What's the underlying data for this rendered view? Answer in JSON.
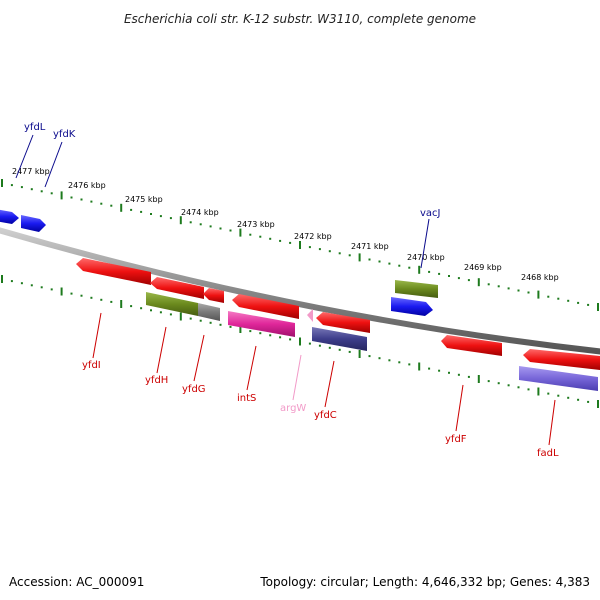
{
  "title": "Escherichia coli str. K-12 substr. W3110, complete genome",
  "footer": {
    "accession": "Accession: AC_000091",
    "summary": "Topology: circular; Length: 4,646,332 bp; Genes: 4,383"
  },
  "ticks": [
    "2477 kbp",
    "2476 kbp",
    "2475 kbp",
    "2474 kbp",
    "2473 kbp",
    "2472 kbp",
    "2471 kbp",
    "2470 kbp",
    "2469 kbp",
    "2468 kbp"
  ],
  "genes": [
    {
      "name": "yfdL",
      "color": "#0a0a8c",
      "strand": "forward"
    },
    {
      "name": "yfdK",
      "color": "#0a0a8c",
      "strand": "forward"
    },
    {
      "name": "vacJ",
      "color": "#0a0a8c",
      "strand": "forward"
    },
    {
      "name": "yfdI",
      "color": "#cc0000",
      "strand": "reverse"
    },
    {
      "name": "yfdH",
      "color": "#cc0000",
      "strand": "reverse"
    },
    {
      "name": "yfdG",
      "color": "#cc0000",
      "strand": "reverse"
    },
    {
      "name": "intS",
      "color": "#cc0000",
      "strand": "reverse"
    },
    {
      "name": "argW",
      "color": "#f29ac8",
      "strand": "reverse"
    },
    {
      "name": "yfdC",
      "color": "#cc0000",
      "strand": "reverse"
    },
    {
      "name": "yfdF",
      "color": "#cc0000",
      "strand": "reverse"
    },
    {
      "name": "fadL",
      "color": "#cc0000",
      "strand": "reverse"
    }
  ],
  "colors": {
    "backbone": "#888888",
    "tick_marks": "#1d7a1d",
    "forward_gene": "#1a1af0",
    "reverse_gene": "#ee1111",
    "olive_feature": "#6b8a1e",
    "magenta_feature": "#e0279a",
    "navy_feature": "#3d3d8a",
    "lavender_feature": "#7766d8",
    "gray_feature": "#7a7a7a"
  }
}
